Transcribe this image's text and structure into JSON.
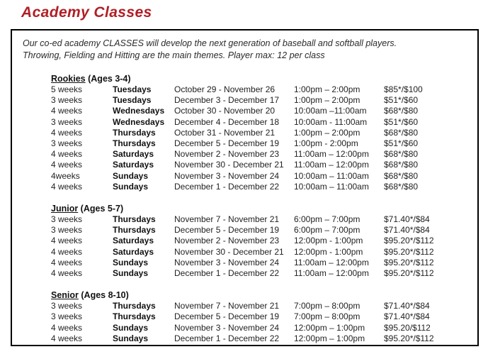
{
  "page": {
    "title": "Academy Classes",
    "intro_line1": "Our co-ed academy CLASSES will develop the next generation of baseball and softball players.",
    "intro_line2": "Throwing, Fielding and Hitting are the main themes. Player max: 12 per class"
  },
  "colors": {
    "title_red": "#b01f26",
    "border": "#000000",
    "text": "#222222"
  },
  "columns": [
    "duration",
    "day",
    "dates",
    "time",
    "price"
  ],
  "sections": [
    {
      "name": "Rookies",
      "ages": "(Ages 3-4)",
      "rows": [
        [
          "5 weeks",
          "Tuesdays",
          "October 29 - November 26",
          "1:00pm – 2:00pm",
          "$85*/$100"
        ],
        [
          "3 weeks",
          "Tuesdays",
          "December 3 - December 17",
          "1:00pm – 2:00pm",
          "$51*/$60"
        ],
        [
          "4 weeks",
          "Wednesdays",
          "October 30 - November 20",
          "10:00am –11:00am",
          "$68*/$80"
        ],
        [
          "3 weeks",
          "Wednesdays",
          "December 4 - December 18",
          "10:00am - 11:00am",
          "$51*/$60"
        ],
        [
          "4 weeks",
          "Thursdays",
          "October 31 - November 21",
          "1:00pm – 2:00pm",
          "$68*/$80"
        ],
        [
          "3 weeks",
          "Thursdays",
          "December 5 - December 19",
          "1:00pm - 2:00pm",
          "$51*/$60"
        ],
        [
          "4 weeks",
          "Saturdays",
          "November 2 - November 23",
          "11:00am – 12:00pm",
          "$68*/$80"
        ],
        [
          "4 weeks",
          "Saturdays",
          "November 30 - December 21",
          "11:00am – 12:00pm",
          "$68*/$80"
        ],
        [
          "4weeks",
          "Sundays",
          "November 3 - November 24",
          "10:00am – 11:00am",
          "$68*/$80"
        ],
        [
          "4 weeks",
          "Sundays",
          "December 1 - December 22",
          "10:00am – 11:00am",
          "$68*/$80"
        ]
      ]
    },
    {
      "name": "Junior",
      "ages": "(Ages 5-7)",
      "rows": [
        [
          "3 weeks",
          "Thursdays",
          "November 7 - November 21",
          "6:00pm – 7:00pm",
          "$71.40*/$84"
        ],
        [
          "3 weeks",
          "Thursdays",
          "December 5 - December 19",
          "6:00pm – 7:00pm",
          "$71.40*/$84"
        ],
        [
          "4 weeks",
          "Saturdays",
          "November 2 - November 23",
          "12:00pm - 1:00pm",
          "$95.20*/$112"
        ],
        [
          "4 weeks",
          "Saturdays",
          "November 30 - December 21",
          "12:00pm - 1:00pm",
          "$95.20*/$112"
        ],
        [
          "4 weeks",
          "Sundays",
          "November 3 - November 24",
          "11:00am – 12:00pm",
          "$95.20*/$112"
        ],
        [
          "4 weeks",
          "Sundays",
          "December 1 - December 22",
          "11:00am – 12:00pm",
          "$95.20*/$112"
        ]
      ]
    },
    {
      "name": "Senior",
      "ages": "(Ages 8-10)",
      "rows": [
        [
          "3 weeks",
          "Thursdays",
          "November 7 - November 21",
          "7:00pm – 8:00pm",
          "$71.40*/$84"
        ],
        [
          "3 weeks",
          "Thursdays",
          "December 5 - December 19",
          "7:00pm – 8:00pm",
          "$71.40*/$84"
        ],
        [
          "4 weeks",
          "Sundays",
          "November 3 - November 24",
          "12:00pm – 1:00pm",
          "$95.20/$112"
        ],
        [
          "4 weeks",
          "Sundays",
          "December 1 - December 22",
          "12:00pm – 1:00pm",
          "$95.20*/$112"
        ]
      ]
    }
  ]
}
